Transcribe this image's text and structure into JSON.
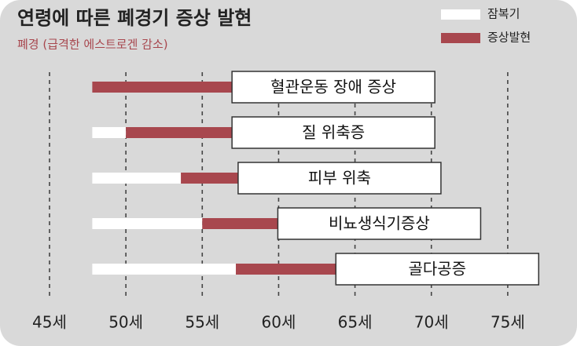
{
  "chart_data": {
    "type": "floating-bar",
    "title": "연령에 따른 폐경기 증상 발현",
    "subtitle": "폐경 (급격한 에스트로겐 감소)",
    "categories": [
      "혈관운동 장애 증상",
      "질 위축증",
      "피부 위축",
      "비뇨생식기증상",
      "골다공증"
    ],
    "series": [
      {
        "name": "잠복기",
        "color": "#ffffff",
        "values": [
          null,
          [
            47.8,
            50
          ],
          [
            47.8,
            53.6
          ],
          [
            47.8,
            55
          ],
          [
            47.8,
            57.2
          ]
        ]
      },
      {
        "name": "증상발현",
        "color": "#a8474e",
        "values": [
          [
            47.8,
            57
          ],
          [
            50,
            57
          ],
          [
            53.6,
            57.4
          ],
          [
            55,
            60
          ],
          [
            57.2,
            63.8
          ]
        ]
      }
    ],
    "xlim": [
      42,
      79
    ],
    "xticks": [
      {
        "value": 45,
        "label": "45세"
      },
      {
        "value": 50,
        "label": "50세"
      },
      {
        "value": 55,
        "label": "55세"
      },
      {
        "value": 60,
        "label": "60세"
      },
      {
        "value": 65,
        "label": "65세"
      },
      {
        "value": 70,
        "label": "70세"
      },
      {
        "value": 75,
        "label": "75세"
      }
    ],
    "grid": true,
    "legend": "top-right"
  }
}
